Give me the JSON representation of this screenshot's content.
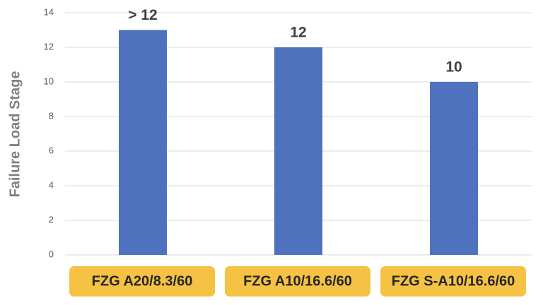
{
  "chart_data": {
    "type": "bar",
    "y_label": "Failure Load Stage",
    "categories": [
      "FZG A20/8.3/60",
      "FZG A10/16.6/60",
      "FZG S-A10/16.6/60"
    ],
    "values": [
      13,
      12,
      10
    ],
    "value_labels": [
      "> 12",
      "12",
      "10"
    ],
    "color": "#4f72be",
    "category_box_color": "#f5c244",
    "ylim": [
      0,
      14
    ],
    "yticks": [
      0,
      2,
      4,
      6,
      8,
      10,
      12,
      14
    ],
    "grid": true
  }
}
